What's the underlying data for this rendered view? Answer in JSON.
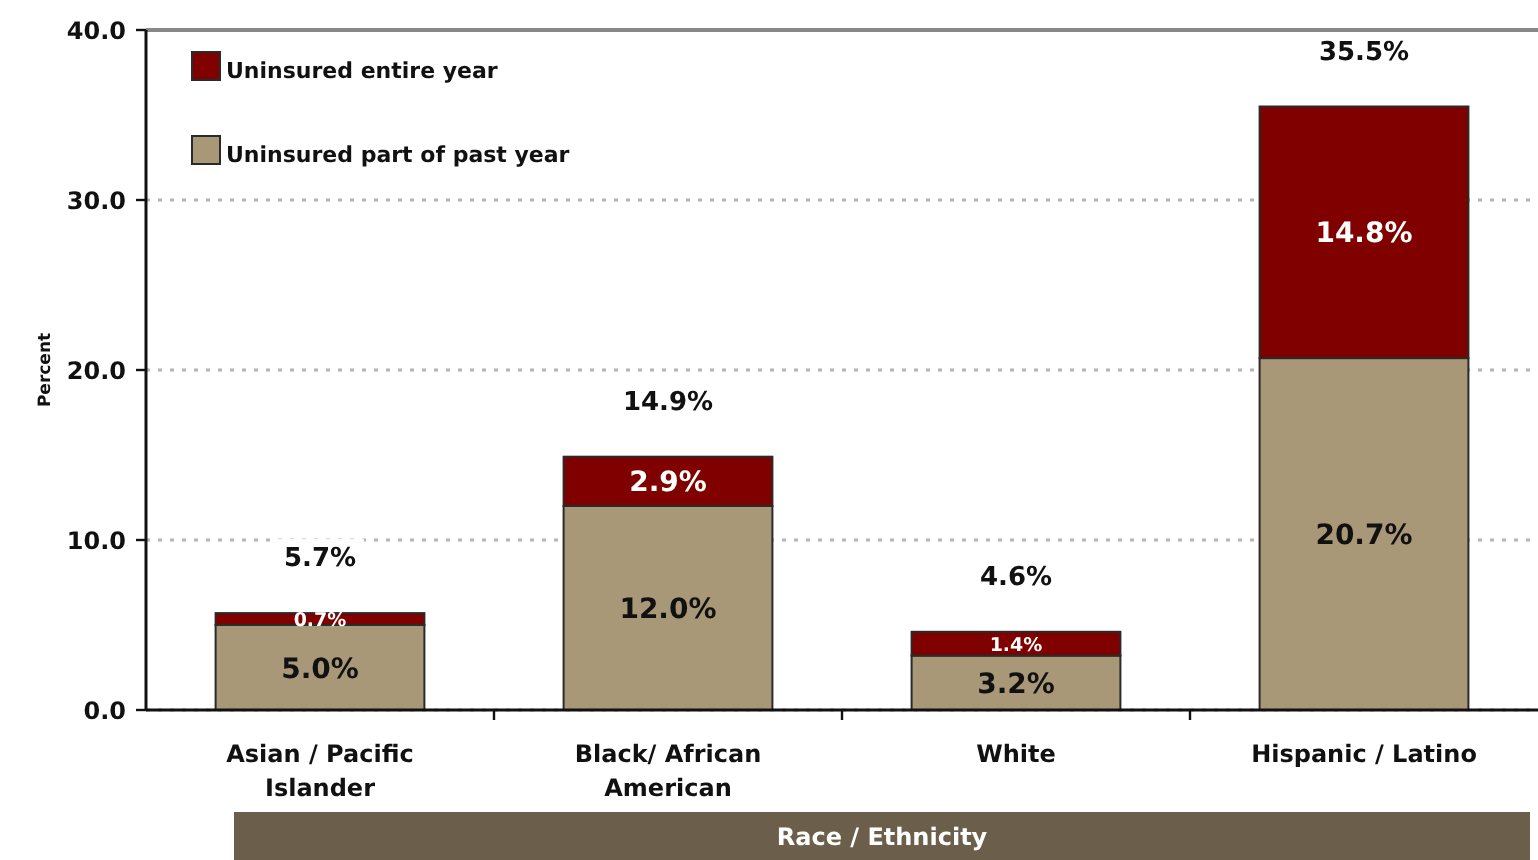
{
  "chart_data": {
    "type": "bar",
    "stacked": true,
    "xlabel": "Race / Ethnicity",
    "ylabel": "Percent",
    "categories": [
      "Asian / Pacific Islander",
      "Black/ African American",
      "White",
      "Hispanic / Latino"
    ],
    "series": [
      {
        "name": "Uninsured part of past year",
        "color": "#a89878",
        "values": [
          5.0,
          12.0,
          3.2,
          20.7
        ],
        "value_labels": [
          "5.0%",
          "12.0%",
          "3.2%",
          "20.7%"
        ]
      },
      {
        "name": "Uninsured entire year",
        "color": "#800000",
        "values": [
          0.7,
          2.9,
          1.4,
          14.8
        ],
        "value_labels": [
          "0.7%",
          "2.9%",
          "1.4%",
          "14.8%"
        ]
      }
    ],
    "totals": [
      "5.7%",
      "14.9%",
      "4.6%",
      "35.5%"
    ],
    "ylim": [
      0,
      40
    ],
    "yticks": [
      {
        "value": 0,
        "label": "0.0"
      },
      {
        "value": 10,
        "label": "10.0"
      },
      {
        "value": 20,
        "label": "20.0"
      },
      {
        "value": 30,
        "label": "30.0"
      },
      {
        "value": 40,
        "label": "40.0"
      }
    ],
    "grid": "y",
    "legend": "top left"
  }
}
